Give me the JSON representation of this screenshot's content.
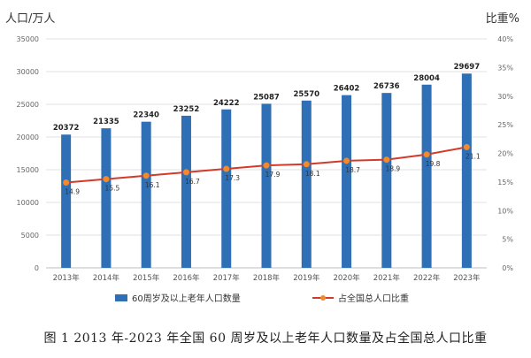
{
  "chart_data": {
    "type": "bar",
    "categories": [
      "2013年",
      "2014年",
      "2015年",
      "2016年",
      "2017年",
      "2018年",
      "2019年",
      "2020年",
      "2021年",
      "2022年",
      "2023年"
    ],
    "series": [
      {
        "name": "60周岁及以上老年人口数量",
        "type": "bar",
        "axis": "left",
        "color": "#2f6fb5",
        "values": [
          20372,
          21335,
          22340,
          23252,
          24222,
          25087,
          25570,
          26402,
          26736,
          28004,
          29697
        ],
        "labels": [
          "20372",
          "21335",
          "22340",
          "23252",
          "24222",
          "25087",
          "25570",
          "26402",
          "26736",
          "28004",
          "29697"
        ]
      },
      {
        "name": "占全国总人口比重",
        "type": "line",
        "axis": "right",
        "color": "#d23a2a",
        "values": [
          14.9,
          15.5,
          16.1,
          16.7,
          17.3,
          17.9,
          18.1,
          18.7,
          18.9,
          19.8,
          21.1
        ],
        "labels": [
          "14.9",
          "15.5",
          "16.1",
          "16.7",
          "17.3",
          "17.9",
          "18.1",
          "18.7",
          "18.9",
          "19.8",
          "21.1"
        ]
      }
    ],
    "ylabel_left": "人口/万人",
    "ylabel_right": "比重%",
    "ylim_left": [
      0,
      35000
    ],
    "ylim_right": [
      0,
      40
    ],
    "yticks_left": [
      "0",
      "5000",
      "10000",
      "15000",
      "20000",
      "25000",
      "30000",
      "35000"
    ],
    "yticks_right": [
      "0%",
      "5%",
      "10%",
      "15%",
      "20%",
      "25%",
      "30%",
      "35%",
      "40%"
    ],
    "grid": true,
    "legend_position": "bottom"
  },
  "caption": "图 1   2013 年-2023 年全国 60 周岁及以上老年人口数量及占全国总人口比重"
}
